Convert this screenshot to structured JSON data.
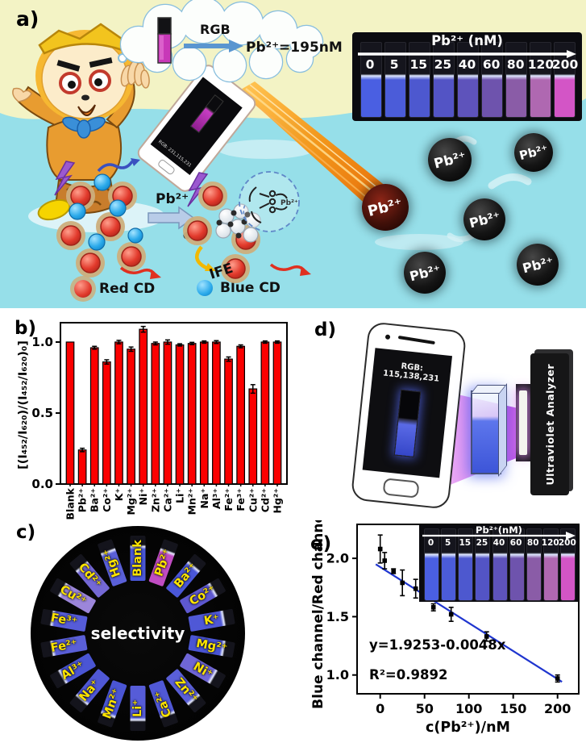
{
  "panels": {
    "a": {
      "label": "a)",
      "thought_bubble": {
        "rgb_label": "RGB",
        "result": "Pb²⁺=195nM"
      },
      "phone_screen_rgb": "RGB: 231,115,231",
      "strip": {
        "title": "Pb²⁺ (nM)",
        "labels": [
          "0",
          "5",
          "15",
          "25",
          "40",
          "60",
          "80",
          "120",
          "200"
        ],
        "colors": [
          "#4a5fe2",
          "#4b5cd9",
          "#4d58cf",
          "#5354c5",
          "#5e53bb",
          "#6e53ad",
          "#8a5ca7",
          "#af68b1",
          "#d355c6"
        ]
      },
      "sphere_label": "Pb²⁺",
      "reaction_arrow_label": "Pb²⁺",
      "ife_label": "IFE",
      "chelate_label": "Pb²⁺",
      "legend": {
        "red": "Red CD",
        "blue": "Blue CD"
      }
    },
    "b": {
      "label": "b)"
    },
    "c": {
      "label": "c)",
      "center_label": "selectivity",
      "label_color": "#ffe400",
      "items": [
        {
          "label": "Blank",
          "color": "#4a57d8"
        },
        {
          "label": "Pb²⁺",
          "color": "#c04cc2"
        },
        {
          "label": "Ba²⁺",
          "color": "#4a57d8"
        },
        {
          "label": "Co²⁺",
          "color": "#5e58d0"
        },
        {
          "label": "K⁺",
          "color": "#4f58d6"
        },
        {
          "label": "Mg²⁺",
          "color": "#4a55d4"
        },
        {
          "label": "Ni⁺",
          "color": "#6f66d6"
        },
        {
          "label": "Zn²⁺",
          "color": "#5a5fd8"
        },
        {
          "label": "Ca²⁺",
          "color": "#5058d6"
        },
        {
          "label": "Li⁺",
          "color": "#565cd8"
        },
        {
          "label": "Mn²⁺",
          "color": "#4a55d4"
        },
        {
          "label": "Na⁺",
          "color": "#5058d6"
        },
        {
          "label": "Al³⁺",
          "color": "#4a55d4"
        },
        {
          "label": "Fe²⁺",
          "color": "#5a5fd8"
        },
        {
          "label": "Fe³⁺",
          "color": "#565cd8"
        },
        {
          "label": "Cu²⁺",
          "color": "#9c86da"
        },
        {
          "label": "Cd²⁺",
          "color": "#7468d4"
        },
        {
          "label": "Hg²⁺",
          "color": "#5a60d8"
        }
      ]
    },
    "d": {
      "label": "d)",
      "screen_rgb": "RGB: 115,138,231",
      "analyzer_label": "Ultraviolet Analyzer"
    },
    "e": {
      "label": "e)",
      "equation": "y=1.9253-0.0048x",
      "r_squared": "R²=0.9892",
      "inset": {
        "title": "Pb²⁺(nM)",
        "labels": [
          "0",
          "5",
          "15",
          "25",
          "40",
          "60",
          "80",
          "120",
          "200"
        ],
        "colors": [
          "#4a5fe2",
          "#4b5cd9",
          "#4d58cf",
          "#5354c5",
          "#5e53bb",
          "#6e53ad",
          "#8a5ca7",
          "#af68b1",
          "#d355c6"
        ]
      }
    }
  },
  "chart_data": [
    {
      "type": "bar",
      "panel": "b",
      "categories": [
        "Blank",
        "Pb²⁺",
        "Ba²⁺",
        "Co²⁺",
        "K⁺",
        "Mg²⁺",
        "Ni⁺",
        "Zn²⁺",
        "Ca²⁺",
        "Li⁺",
        "Mn²⁺",
        "Na⁺",
        "Al³⁺",
        "Fe²⁺",
        "Fe³⁺",
        "Cu²⁺",
        "Cd²⁺",
        "Hg²⁺"
      ],
      "values": [
        1.0,
        0.24,
        0.96,
        0.86,
        1.0,
        0.95,
        1.09,
        0.99,
        1.0,
        0.98,
        0.99,
        1.0,
        1.0,
        0.88,
        0.97,
        0.67,
        1.0,
        1.0
      ],
      "errors": [
        0,
        0.012,
        0.01,
        0.015,
        0.012,
        0.015,
        0.02,
        0.01,
        0.015,
        0.008,
        0.008,
        0.008,
        0.01,
        0.015,
        0.01,
        0.03,
        0.008,
        0.008
      ],
      "title": "",
      "xlabel": "",
      "ylabel": "[(I₄₅₂/I₆₂₀)/(I₄₅₂/I₆₂₀)₀]",
      "yticks": [
        0.0,
        0.5,
        1.0
      ],
      "ylim": [
        0,
        1.136
      ],
      "bar_color": "#fb0000",
      "grid": false
    },
    {
      "type": "scatter",
      "panel": "e",
      "x": [
        0,
        5,
        15,
        25,
        40,
        60,
        80,
        120,
        200
      ],
      "y": [
        2.08,
        1.98,
        1.89,
        1.79,
        1.74,
        1.58,
        1.52,
        1.33,
        0.97
      ],
      "errors": [
        0.12,
        0.07,
        0.02,
        0.11,
        0.08,
        0.03,
        0.06,
        0.04,
        0.03
      ],
      "fit": {
        "intercept": 1.9253,
        "slope": -0.0048,
        "x_range": [
          -5,
          205
        ],
        "color": "#1f35cf"
      },
      "equation": "y=1.9253-0.0048x",
      "r_squared": "R²=0.9892",
      "xlabel": "c(Pb²⁺)/nM",
      "ylabel": "Blue channel/Red channel",
      "xticks": [
        0,
        50,
        100,
        150,
        200
      ],
      "yticks": [
        1.0,
        1.5,
        2.0
      ],
      "xlim": [
        -26,
        224
      ],
      "ylim": [
        0.84,
        2.29
      ],
      "point_color": "#000000",
      "grid": false
    }
  ]
}
